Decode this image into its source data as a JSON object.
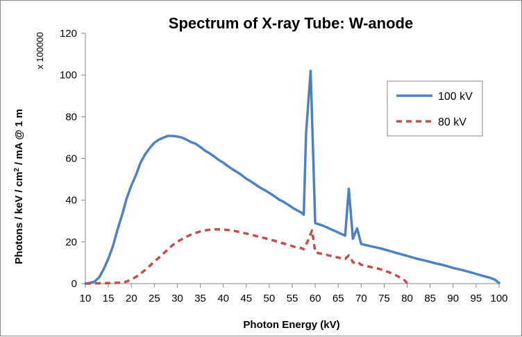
{
  "chart_data": {
    "type": "line",
    "title": "Spectrum of X-ray Tube: W-anode",
    "xlabel": "Photon Energy (kV)",
    "ylabel": "Photons / keV / cm² / mA @ 1 m",
    "ylabel_parts": [
      "Photons / keV / cm",
      "2",
      " / mA @ 1 m"
    ],
    "y_multiplier": "x 100000",
    "xlim": [
      10,
      100
    ],
    "ylim": [
      0,
      120
    ],
    "x_ticks": [
      10,
      15,
      20,
      25,
      30,
      35,
      40,
      45,
      50,
      55,
      60,
      65,
      70,
      75,
      80,
      85,
      90,
      95,
      100
    ],
    "y_ticks": [
      0,
      20,
      40,
      60,
      80,
      100,
      120
    ],
    "grid": false,
    "legend_position": "top-right",
    "series": [
      {
        "name": "100 kV",
        "color": "#4F81BD",
        "style": "solid",
        "points": [
          [
            10,
            0
          ],
          [
            11,
            0.3
          ],
          [
            12,
            1
          ],
          [
            13,
            3
          ],
          [
            14,
            7
          ],
          [
            15,
            12
          ],
          [
            16,
            18
          ],
          [
            17,
            26
          ],
          [
            18,
            33
          ],
          [
            19,
            41
          ],
          [
            20,
            47
          ],
          [
            21,
            52
          ],
          [
            22,
            58
          ],
          [
            23,
            62
          ],
          [
            24,
            65
          ],
          [
            25,
            67.5
          ],
          [
            26,
            69
          ],
          [
            27,
            70
          ],
          [
            28,
            70.8
          ],
          [
            29,
            70.8
          ],
          [
            30,
            70.5
          ],
          [
            31,
            70
          ],
          [
            32,
            69
          ],
          [
            33,
            67.8
          ],
          [
            34,
            67
          ],
          [
            35,
            65.5
          ],
          [
            36,
            63.8
          ],
          [
            37,
            62.5
          ],
          [
            38,
            61
          ],
          [
            39,
            59.3
          ],
          [
            40,
            58
          ],
          [
            41,
            56.3
          ],
          [
            42,
            54.8
          ],
          [
            43,
            53.5
          ],
          [
            44,
            52
          ],
          [
            45,
            50.3
          ],
          [
            46,
            49
          ],
          [
            47,
            47.5
          ],
          [
            48,
            46
          ],
          [
            49,
            44.8
          ],
          [
            50,
            43.5
          ],
          [
            51,
            42
          ],
          [
            52,
            40.5
          ],
          [
            53,
            39.3
          ],
          [
            54,
            38
          ],
          [
            55,
            36.5
          ],
          [
            56,
            35.2
          ],
          [
            57,
            34
          ],
          [
            57.5,
            33
          ],
          [
            58,
            72
          ],
          [
            59,
            102
          ],
          [
            60,
            29
          ],
          [
            61,
            28.3
          ],
          [
            62,
            27.5
          ],
          [
            63,
            26.5
          ],
          [
            64,
            25.5
          ],
          [
            65,
            24.5
          ],
          [
            66,
            23.5
          ],
          [
            66.5,
            23
          ],
          [
            67.3,
            45.5
          ],
          [
            68.2,
            21.5
          ],
          [
            69.1,
            26.5
          ],
          [
            70,
            19
          ],
          [
            72,
            18
          ],
          [
            74,
            17
          ],
          [
            76,
            15.8
          ],
          [
            78,
            14.5
          ],
          [
            80,
            13.3
          ],
          [
            82,
            12
          ],
          [
            84,
            11
          ],
          [
            86,
            9.8
          ],
          [
            88,
            8.8
          ],
          [
            90,
            7.5
          ],
          [
            92,
            6.5
          ],
          [
            94,
            5.3
          ],
          [
            96,
            4
          ],
          [
            98,
            2.8
          ],
          [
            99,
            2
          ],
          [
            100,
            0.3
          ]
        ]
      },
      {
        "name": "80 kV",
        "color": "#C0504D",
        "style": "dashed",
        "points": [
          [
            10,
            0
          ],
          [
            14,
            0.2
          ],
          [
            16,
            0.3
          ],
          [
            18,
            0.5
          ],
          [
            19,
            1
          ],
          [
            20,
            2
          ],
          [
            21,
            3.2
          ],
          [
            22,
            4.8
          ],
          [
            23,
            6.5
          ],
          [
            24,
            8.5
          ],
          [
            25,
            10.5
          ],
          [
            26,
            12.5
          ],
          [
            27,
            14.5
          ],
          [
            28,
            16.5
          ],
          [
            29,
            18.5
          ],
          [
            30,
            20
          ],
          [
            31,
            21.3
          ],
          [
            32,
            22.5
          ],
          [
            33,
            23.5
          ],
          [
            34,
            24.3
          ],
          [
            35,
            25
          ],
          [
            36,
            25.5
          ],
          [
            37,
            25.8
          ],
          [
            38,
            26
          ],
          [
            39,
            26
          ],
          [
            40,
            25.9
          ],
          [
            41,
            25.7
          ],
          [
            42,
            25.4
          ],
          [
            43,
            25
          ],
          [
            44,
            24.5
          ],
          [
            45,
            24
          ],
          [
            46,
            23.5
          ],
          [
            47,
            22.9
          ],
          [
            48,
            22.3
          ],
          [
            49,
            21.8
          ],
          [
            50,
            21.2
          ],
          [
            51,
            20.6
          ],
          [
            52,
            20
          ],
          [
            53,
            19.3
          ],
          [
            54,
            18.7
          ],
          [
            55,
            18
          ],
          [
            56,
            17.3
          ],
          [
            57,
            17
          ],
          [
            57.5,
            16.5
          ],
          [
            58.5,
            21
          ],
          [
            59.3,
            25.5
          ],
          [
            60,
            15
          ],
          [
            61,
            14.5
          ],
          [
            62,
            14
          ],
          [
            63,
            13.5
          ],
          [
            64,
            13
          ],
          [
            65,
            12.5
          ],
          [
            66,
            12
          ],
          [
            66.5,
            11.8
          ],
          [
            67.3,
            13.5
          ],
          [
            68.3,
            10
          ],
          [
            69.2,
            10.5
          ],
          [
            70,
            9
          ],
          [
            72,
            8
          ],
          [
            74,
            7
          ],
          [
            76,
            5.5
          ],
          [
            78,
            3.5
          ],
          [
            79.5,
            1.5
          ],
          [
            80,
            0.2
          ]
        ]
      }
    ]
  }
}
